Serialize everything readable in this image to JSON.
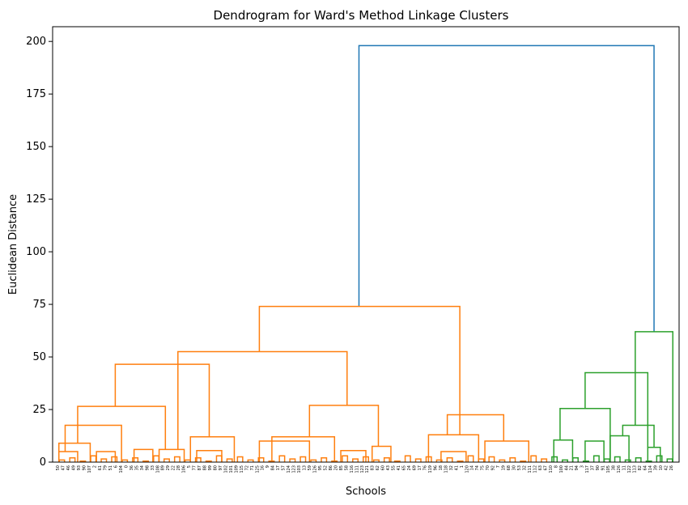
{
  "chart_data": {
    "type": "dendrogram",
    "title": "Dendrogram for Ward's Method Linkage Clusters",
    "xlabel": "Schools",
    "ylabel": "Euclidean Distance",
    "ylim": [
      0,
      207
    ],
    "yticks": [
      0,
      25,
      50,
      75,
      100,
      125,
      150,
      175,
      200
    ],
    "grid": false,
    "colors": {
      "orange_cluster": "#ff7f0e",
      "green_cluster": "#2ca02c",
      "root": "#1f77b4"
    },
    "leaves": [
      "50",
      "47",
      "46",
      "49",
      "93",
      "90",
      "107",
      "2",
      "61",
      "79",
      "51",
      "6",
      "104",
      "0",
      "36",
      "35",
      "34",
      "98",
      "33",
      "108",
      "89",
      "29",
      "22",
      "28",
      "106",
      "5",
      "77",
      "87",
      "88",
      "99",
      "80",
      "97",
      "102",
      "101",
      "109",
      "115",
      "72",
      "71",
      "125",
      "16",
      "9",
      "84",
      "17",
      "57",
      "124",
      "123",
      "103",
      "13",
      "59",
      "126",
      "95",
      "52",
      "86",
      "20",
      "85",
      "58",
      "116",
      "111",
      "123",
      "121",
      "83",
      "62",
      "60",
      "43",
      "55",
      "41",
      "65",
      "24",
      "69",
      "17",
      "76",
      "119",
      "96",
      "18",
      "118",
      "32",
      "41",
      "1",
      "120",
      "14",
      "74",
      "75",
      "70",
      "92",
      "7",
      "19",
      "68",
      "30",
      "53",
      "32",
      "111",
      "112",
      "63",
      "67",
      "110",
      "8",
      "100",
      "44",
      "21",
      "94",
      "3",
      "117",
      "37",
      "90",
      "91",
      "105",
      "38",
      "126",
      "11",
      "122",
      "113",
      "82",
      "64",
      "114",
      "39",
      "10",
      "42",
      "26"
    ],
    "merges": [
      {
        "height": 198,
        "left_center": 0.489,
        "right_center": 0.96,
        "color": "root"
      },
      {
        "height": 74,
        "left_center": 0.33,
        "right_center": 0.65,
        "color": "orange_cluster"
      },
      {
        "height": 62,
        "left_center": 0.93,
        "right_center": 0.99,
        "color": "green_cluster"
      },
      {
        "height": 52.5,
        "left_center": 0.2,
        "right_center": 0.47,
        "color": "orange_cluster"
      },
      {
        "height": 46.5,
        "left_center": 0.1,
        "right_center": 0.25,
        "color": "orange_cluster"
      },
      {
        "height": 42.5,
        "left_center": 0.85,
        "right_center": 0.95,
        "color": "green_cluster"
      },
      {
        "height": 27,
        "left_center": 0.41,
        "right_center": 0.52,
        "color": "orange_cluster"
      },
      {
        "height": 26.5,
        "left_center": 0.04,
        "right_center": 0.18,
        "color": "orange_cluster"
      },
      {
        "height": 25.5,
        "left_center": 0.81,
        "right_center": 0.89,
        "color": "green_cluster"
      },
      {
        "height": 22.5,
        "left_center": 0.63,
        "right_center": 0.72,
        "color": "orange_cluster"
      },
      {
        "height": 17.5,
        "left_center": 0.02,
        "right_center": 0.11,
        "color": "orange_cluster"
      },
      {
        "height": 17.5,
        "left_center": 0.91,
        "right_center": 0.96,
        "color": "green_cluster"
      },
      {
        "height": 12,
        "left_center": 0.35,
        "right_center": 0.45,
        "color": "orange_cluster"
      },
      {
        "height": 12,
        "left_center": 0.22,
        "right_center": 0.29,
        "color": "orange_cluster"
      },
      {
        "height": 12.5,
        "left_center": 0.89,
        "right_center": 0.92,
        "color": "green_cluster"
      },
      {
        "height": 13,
        "left_center": 0.6,
        "right_center": 0.68,
        "color": "orange_cluster"
      },
      {
        "height": 10,
        "left_center": 0.69,
        "right_center": 0.76,
        "color": "orange_cluster"
      },
      {
        "height": 10.5,
        "left_center": 0.8,
        "right_center": 0.83,
        "color": "green_cluster"
      },
      {
        "height": 10,
        "left_center": 0.85,
        "right_center": 0.88,
        "color": "green_cluster"
      },
      {
        "height": 10,
        "left_center": 0.33,
        "right_center": 0.41,
        "color": "orange_cluster"
      },
      {
        "height": 9,
        "left_center": 0.01,
        "right_center": 0.06,
        "color": "orange_cluster"
      },
      {
        "height": 7.5,
        "left_center": 0.51,
        "right_center": 0.54,
        "color": "orange_cluster"
      },
      {
        "height": 7,
        "left_center": 0.95,
        "right_center": 0.97,
        "color": "green_cluster"
      },
      {
        "height": 6,
        "left_center": 0.17,
        "right_center": 0.21,
        "color": "orange_cluster"
      },
      {
        "height": 6,
        "left_center": 0.13,
        "right_center": 0.16,
        "color": "orange_cluster"
      },
      {
        "height": 5.5,
        "left_center": 0.23,
        "right_center": 0.27,
        "color": "orange_cluster"
      },
      {
        "height": 5.5,
        "left_center": 0.46,
        "right_center": 0.5,
        "color": "orange_cluster"
      },
      {
        "height": 5,
        "left_center": 0.01,
        "right_center": 0.04,
        "color": "orange_cluster"
      },
      {
        "height": 5,
        "left_center": 0.07,
        "right_center": 0.1,
        "color": "orange_cluster"
      },
      {
        "height": 5,
        "left_center": 0.62,
        "right_center": 0.66,
        "color": "orange_cluster"
      }
    ]
  }
}
